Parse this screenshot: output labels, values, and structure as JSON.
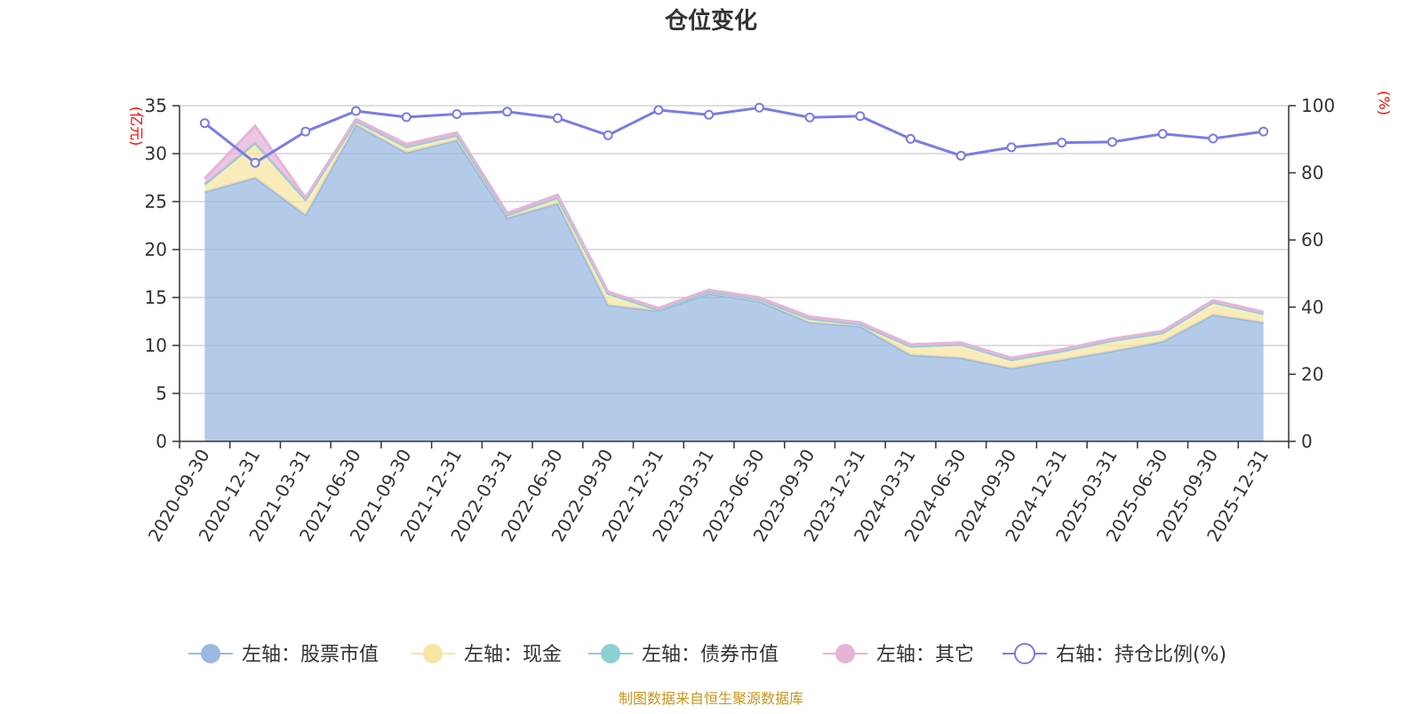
{
  "chart_data": {
    "type": "area",
    "title": "仓位变化",
    "left_unit": "(亿元)",
    "right_unit": "(%)",
    "left_ylim": [
      0,
      35
    ],
    "left_ticks": [
      0,
      5,
      10,
      15,
      20,
      25,
      30,
      35
    ],
    "right_ylim": [
      0,
      100
    ],
    "right_ticks": [
      0,
      20,
      40,
      60,
      80,
      100
    ],
    "categories": [
      "2020-09-30",
      "2020-12-31",
      "2021-03-31",
      "2021-06-30",
      "2021-09-30",
      "2021-12-31",
      "2022-03-31",
      "2022-06-30",
      "2022-09-30",
      "2022-12-31",
      "2023-03-31",
      "2023-06-30",
      "2023-09-30",
      "2023-12-31",
      "2024-03-31",
      "2024-06-30",
      "2024-09-30",
      "2024-12-31",
      "2025-03-31",
      "2025-06-30",
      "2025-09-30",
      "2025-12-31"
    ],
    "series": [
      {
        "name": "左轴：股票市值",
        "axis": "left",
        "color": "#9bb8e2",
        "values": [
          26.0,
          27.5,
          23.6,
          33.0,
          30.1,
          31.4,
          23.3,
          24.8,
          14.2,
          13.6,
          15.4,
          14.6,
          12.4,
          12.0,
          9.0,
          8.7,
          7.6,
          8.5,
          9.4,
          10.4,
          13.2,
          12.4
        ]
      },
      {
        "name": "左轴：现金",
        "axis": "left",
        "color": "#f8e5a3",
        "values": [
          0.8,
          3.6,
          1.6,
          0.4,
          0.6,
          0.5,
          0.3,
          0.6,
          1.2,
          0.1,
          0.2,
          0.2,
          0.4,
          0.2,
          0.9,
          1.4,
          0.9,
          0.9,
          1.1,
          0.9,
          1.3,
          0.9
        ]
      },
      {
        "name": "左轴：债券市值",
        "axis": "left",
        "color": "#8dd0d3",
        "values": [
          0,
          0,
          0,
          0,
          0,
          0,
          0,
          0,
          0,
          0,
          0,
          0,
          0,
          0,
          0,
          0,
          0,
          0,
          0,
          0,
          0,
          0
        ]
      },
      {
        "name": "左轴：其它",
        "axis": "left",
        "color": "#e6b4d9",
        "values": [
          0.6,
          1.8,
          0.2,
          0.2,
          0.3,
          0.3,
          0.2,
          0.3,
          0.2,
          0.2,
          0.2,
          0.2,
          0.2,
          0.2,
          0.2,
          0.2,
          0.2,
          0.2,
          0.2,
          0.2,
          0.2,
          0.2
        ]
      },
      {
        "name": "右轴：持仓比例(%)",
        "axis": "right",
        "color": "#7b7be6",
        "values": [
          94.8,
          83.0,
          92.3,
          98.4,
          96.6,
          97.5,
          98.2,
          96.3,
          91.2,
          98.7,
          97.3,
          99.4,
          96.5,
          96.9,
          90.1,
          85.1,
          87.6,
          89.0,
          89.2,
          91.6,
          90.2,
          92.3
        ]
      }
    ],
    "legend_position": "bottom-center",
    "source": "制图数据来自恒生聚源数据库"
  }
}
